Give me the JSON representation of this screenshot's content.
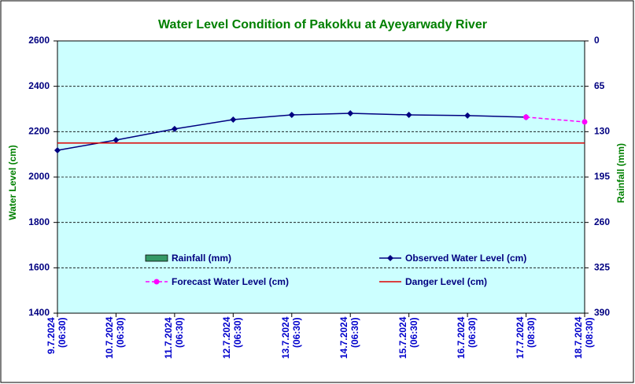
{
  "chart_data": {
    "type": "line",
    "title": "Water Level Condition of Pakokku at Ayeyarwady River",
    "y_label": "Water Level (cm)",
    "y2_label": "Rainfall (mm)",
    "categories": [
      "9.7.2024\n(06:30)",
      "10.7.2024\n(06:30)",
      "11.7.2024\n(06:30)",
      "12.7.2024\n(06:30)",
      "13.7.2024\n(06:30)",
      "14.7.2024\n(06:30)",
      "15.7.2024\n(06:30)",
      "16.7.2024\n(06:30)",
      "17.7.2024\n(08:30)",
      "18.7.2024\n(08:30)"
    ],
    "ylim": [
      1400,
      2600
    ],
    "yticks": [
      1400,
      1600,
      1800,
      2000,
      2200,
      2400,
      2600
    ],
    "y2lim": [
      390,
      0
    ],
    "y2ticks": [
      0,
      65,
      130,
      195,
      260,
      325,
      390
    ],
    "grid": true,
    "series": [
      {
        "name": "Rainfall (mm)",
        "color": "#339966",
        "kind": "bar",
        "axis": "y2",
        "values": [
          null,
          null,
          null,
          null,
          null,
          null,
          null,
          null,
          null,
          null
        ]
      },
      {
        "name": "Observed Water Level (cm)",
        "color": "#000080",
        "kind": "line",
        "values": [
          2118,
          2163,
          2212,
          2253,
          2274,
          2281,
          2274,
          2271,
          2264,
          null
        ]
      },
      {
        "name": "Forecast Water Level (cm)",
        "color": "#ff00ff",
        "kind": "dashed",
        "values": [
          null,
          null,
          null,
          null,
          null,
          null,
          null,
          null,
          2264,
          2243
        ]
      },
      {
        "name": "Danger Level (cm)",
        "color": "#dd0000",
        "kind": "plain",
        "values": [
          2150,
          2150,
          2150,
          2150,
          2150,
          2150,
          2150,
          2150,
          2150,
          2150
        ]
      }
    ]
  }
}
